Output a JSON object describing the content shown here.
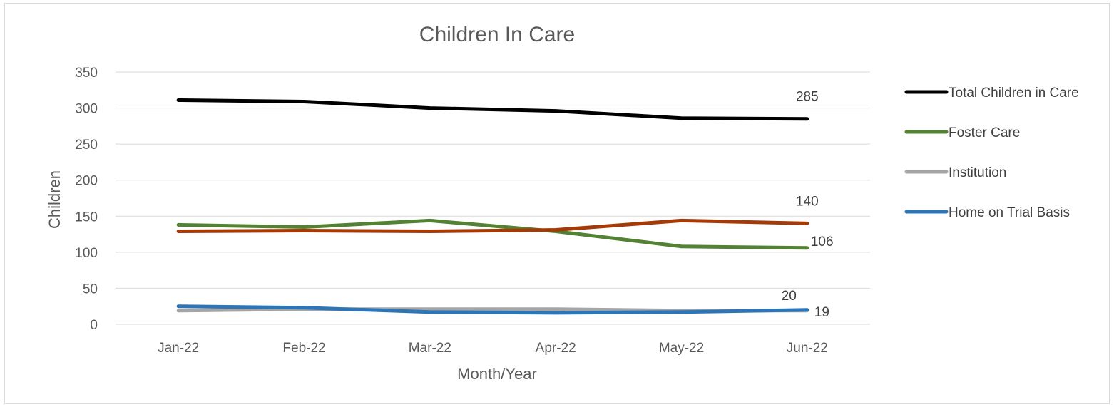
{
  "chart_data": {
    "type": "line",
    "title": "Children In Care",
    "xlabel": "Month/Year",
    "ylabel": "Children",
    "ylim": [
      0,
      350
    ],
    "yticks": [
      0,
      50,
      100,
      150,
      200,
      250,
      300,
      350
    ],
    "grid": true,
    "legend_position": "right",
    "categories": [
      "Jan-22",
      "Feb-22",
      "Mar-22",
      "Apr-22",
      "May-22",
      "Jun-22"
    ],
    "series": [
      {
        "name": "Total Children in Care",
        "color": "#000000",
        "values": [
          311,
          309,
          300,
          296,
          286,
          285
        ],
        "end_label": "285"
      },
      {
        "name": "Foster Care",
        "color": "#548235",
        "values": [
          138,
          135,
          144,
          129,
          108,
          106
        ],
        "end_label": "106"
      },
      {
        "name": "Institution",
        "color": "#a5a5a5",
        "values": [
          19,
          21,
          21,
          21,
          19,
          19
        ],
        "end_label": "19"
      },
      {
        "name": "Home on Trial Basis",
        "color": "#2e75b6",
        "values": [
          25,
          23,
          17,
          16,
          17,
          20
        ],
        "end_label": "20"
      },
      {
        "name": "",
        "color": "#a33a08",
        "values": [
          129,
          130,
          129,
          131,
          144,
          140
        ],
        "end_label": "140"
      }
    ]
  }
}
